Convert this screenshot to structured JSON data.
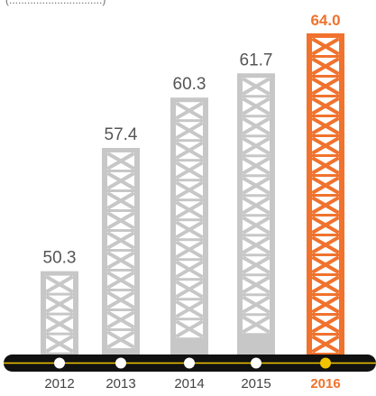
{
  "chart_data": {
    "type": "bar",
    "caption": "(...............................)",
    "categories": [
      "2012",
      "2013",
      "2014",
      "2015",
      "2016"
    ],
    "values": [
      50.3,
      57.4,
      60.3,
      61.7,
      64.0
    ],
    "value_labels": [
      "50.3",
      "57.4",
      "60.3",
      "61.7",
      "64.0"
    ],
    "highlight_index": 4,
    "colors": {
      "bar": "#c7c7c7",
      "highlight": "#f0722d",
      "axis": "#111111",
      "axis_line": "#f2c400",
      "dot": "#ffffff",
      "highlight_dot": "#f2c400"
    }
  }
}
